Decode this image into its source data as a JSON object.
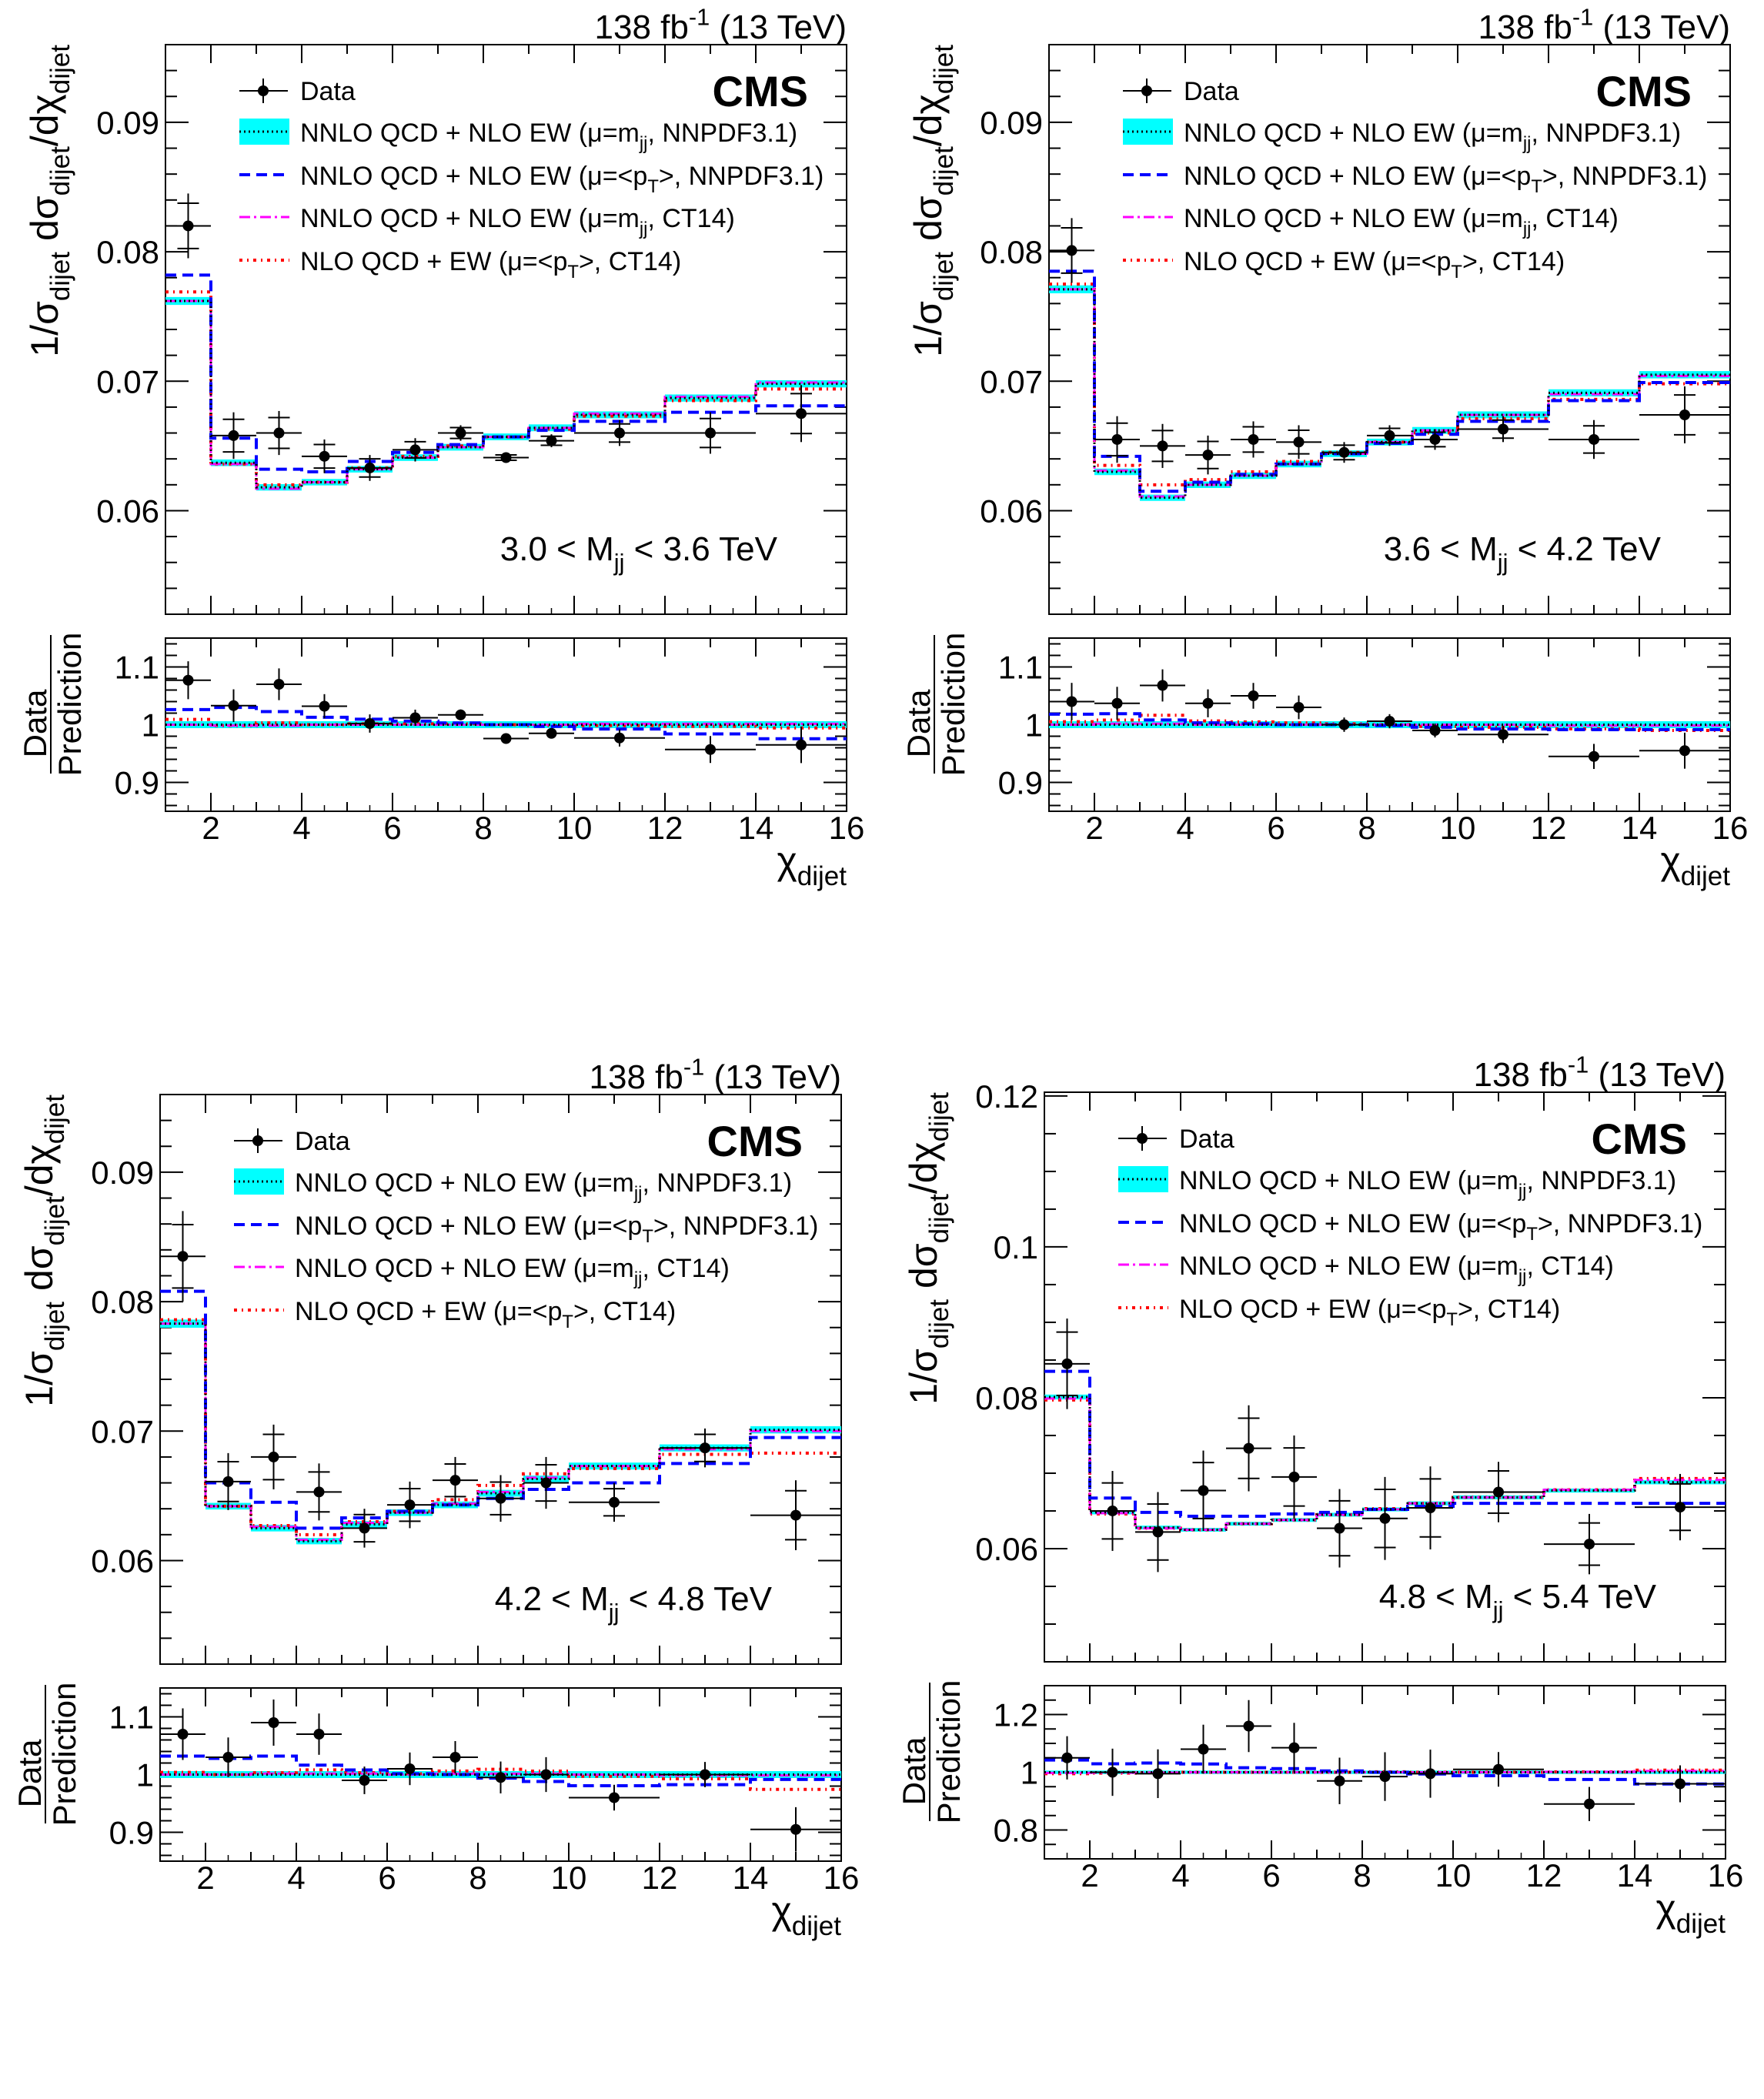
{
  "chart_data": {
    "type": "line",
    "x_bin_edges": [
      1,
      2,
      3,
      4,
      5,
      6,
      7,
      8,
      9,
      10,
      12,
      14,
      16
    ],
    "xlabel": "χ_{dijet}",
    "ylabel_main": "1/σ_{dijet} dσ_{dijet}/dχ_{dijet}",
    "ylabel_ratio_num": "Data",
    "ylabel_ratio_den": "Prediction",
    "lumi": "138 fb^{-1} (13 TeV)",
    "experiment": "CMS",
    "x_ticks": [
      2,
      4,
      6,
      8,
      10,
      12,
      14,
      16
    ],
    "legend": [
      {
        "key": "data",
        "label": "Data"
      },
      {
        "key": "nnpdf_mjj",
        "label": "NNLO QCD + NLO EW (μ=m_{jj}, NNPDF3.1)",
        "color": "#00ffff"
      },
      {
        "key": "nnpdf_pt",
        "label": "NNLO QCD + NLO EW (μ=<p_{T}>, NNPDF3.1)",
        "color": "#0000ff"
      },
      {
        "key": "ct14_mjj",
        "label": "NNLO QCD + NLO EW (μ=m_{jj}, CT14)",
        "color": "#ff00ff"
      },
      {
        "key": "nlo_ct14_pt",
        "label": "NLO QCD + EW (μ=<p_{T}>, CT14)",
        "color": "#ff0000"
      }
    ],
    "panels": [
      {
        "mass_range": "3.0 < M_{jj} < 3.6 TeV",
        "ylim": [
          0.052,
          0.096
        ],
        "y_ticks": [
          0.06,
          0.07,
          0.08,
          0.09
        ],
        "y_minor": 0.002,
        "ratio_ylim": [
          0.85,
          1.15
        ],
        "ratio_ticks": [
          0.9,
          1,
          1.1
        ],
        "ratio_minor": 0.02,
        "data": [
          0.082,
          0.0658,
          0.066,
          0.0642,
          0.0633,
          0.0647,
          0.066,
          0.0641,
          0.0654,
          0.066,
          0.066,
          0.0675
        ],
        "data_err": [
          0.0025,
          0.0018,
          0.0017,
          0.0013,
          0.001,
          0.0009,
          0.0006,
          0.0003,
          0.0005,
          0.001,
          0.0016,
          0.0022
        ],
        "nnpdf_mjj": [
          0.0762,
          0.0637,
          0.0618,
          0.0622,
          0.0632,
          0.0641,
          0.0649,
          0.0657,
          0.0664,
          0.0674,
          0.0687,
          0.0698
        ],
        "nnpdf_pt": [
          0.0782,
          0.0656,
          0.0632,
          0.063,
          0.0638,
          0.0645,
          0.0651,
          0.0657,
          0.0662,
          0.0669,
          0.0676,
          0.0681
        ],
        "ct14_mjj": [
          0.0762,
          0.0636,
          0.0617,
          0.0622,
          0.0632,
          0.0641,
          0.0649,
          0.0657,
          0.0664,
          0.0675,
          0.0688,
          0.0699
        ],
        "nlo_ct14_pt": [
          0.0769,
          0.0636,
          0.062,
          0.0622,
          0.0633,
          0.0642,
          0.065,
          0.0657,
          0.0663,
          0.0673,
          0.0685,
          0.0694
        ],
        "ratio_data": [
          1.077,
          1.033,
          1.07,
          1.032,
          1.002,
          1.012,
          1.017,
          0.976,
          0.985,
          0.977,
          0.957,
          0.965
        ]
      },
      {
        "mass_range": "3.6 < M_{jj} < 4.2 TeV",
        "ylim": [
          0.052,
          0.096
        ],
        "y_ticks": [
          0.06,
          0.07,
          0.08,
          0.09
        ],
        "y_minor": 0.002,
        "ratio_ylim": [
          0.85,
          1.15
        ],
        "ratio_ticks": [
          0.9,
          1,
          1.1
        ],
        "ratio_minor": 0.02,
        "data": [
          0.0801,
          0.0655,
          0.065,
          0.0643,
          0.0655,
          0.0653,
          0.0645,
          0.0658,
          0.0655,
          0.0663,
          0.0655,
          0.0674
        ],
        "data_err": [
          0.0025,
          0.0018,
          0.0017,
          0.0015,
          0.0014,
          0.0013,
          0.0008,
          0.0008,
          0.0008,
          0.001,
          0.0015,
          0.0022
        ],
        "nnpdf_mjj": [
          0.0771,
          0.063,
          0.061,
          0.062,
          0.0627,
          0.0636,
          0.0644,
          0.0653,
          0.0662,
          0.0674,
          0.0691,
          0.0705
        ],
        "nnpdf_pt": [
          0.0785,
          0.0642,
          0.0615,
          0.0622,
          0.0628,
          0.0636,
          0.0644,
          0.0652,
          0.0659,
          0.0669,
          0.0685,
          0.0699
        ],
        "ct14_mjj": [
          0.0771,
          0.0631,
          0.0611,
          0.062,
          0.0627,
          0.0636,
          0.0644,
          0.0653,
          0.0662,
          0.0674,
          0.069,
          0.0704
        ],
        "nlo_ct14_pt": [
          0.0775,
          0.0635,
          0.062,
          0.0624,
          0.063,
          0.0638,
          0.0645,
          0.0653,
          0.066,
          0.0671,
          0.0686,
          0.0698
        ],
        "ratio_data": [
          1.04,
          1.037,
          1.068,
          1.037,
          1.05,
          1.03,
          1.0,
          1.006,
          0.99,
          0.983,
          0.945,
          0.955
        ]
      },
      {
        "mass_range": "4.2 < M_{jj} < 4.8 TeV",
        "ylim": [
          0.052,
          0.096
        ],
        "y_ticks": [
          0.06,
          0.07,
          0.08,
          0.09
        ],
        "y_minor": 0.002,
        "ratio_ylim": [
          0.85,
          1.15
        ],
        "ratio_ticks": [
          0.9,
          1,
          1.1
        ],
        "ratio_minor": 0.02,
        "data": [
          0.0835,
          0.0661,
          0.068,
          0.0653,
          0.0625,
          0.0643,
          0.0662,
          0.0648,
          0.066,
          0.0645,
          0.0687,
          0.0635
        ],
        "data_err": [
          0.0035,
          0.0022,
          0.0025,
          0.0022,
          0.0015,
          0.0018,
          0.0018,
          0.0018,
          0.002,
          0.0015,
          0.0015,
          0.0027
        ],
        "nnpdf_mjj": [
          0.0783,
          0.0642,
          0.0625,
          0.0615,
          0.0628,
          0.0637,
          0.0643,
          0.0652,
          0.0663,
          0.0673,
          0.0687,
          0.0701
        ],
        "nnpdf_pt": [
          0.0808,
          0.066,
          0.0645,
          0.0625,
          0.0633,
          0.0638,
          0.0643,
          0.0648,
          0.0655,
          0.066,
          0.0675,
          0.0695
        ],
        "ct14_mjj": [
          0.0783,
          0.0642,
          0.0626,
          0.0616,
          0.0629,
          0.0637,
          0.0644,
          0.0653,
          0.0664,
          0.0673,
          0.0686,
          0.07
        ],
        "nlo_ct14_pt": [
          0.0786,
          0.0642,
          0.0627,
          0.062,
          0.063,
          0.0638,
          0.0647,
          0.0658,
          0.0667,
          0.0671,
          0.0682,
          0.0683
        ],
        "ratio_data": [
          1.07,
          1.03,
          1.09,
          1.07,
          0.99,
          1.01,
          1.03,
          0.995,
          1.0,
          0.96,
          1.0,
          0.905
        ]
      },
      {
        "mass_range": "4.8 < M_{jj} < 5.4 TeV",
        "ylim": [
          0.045,
          0.1205
        ],
        "y_ticks": [
          0.06,
          0.08,
          0.1,
          0.12
        ],
        "y_minor": 0.005,
        "ratio_ylim": [
          0.7,
          1.3
        ],
        "ratio_ticks": [
          0.8,
          1,
          1.2
        ],
        "ratio_minor": 0.05,
        "data": [
          0.0845,
          0.065,
          0.0622,
          0.0677,
          0.0733,
          0.0695,
          0.0627,
          0.064,
          0.0654,
          0.0675,
          0.0606,
          0.0655
        ],
        "data_err": [
          0.006,
          0.0053,
          0.0053,
          0.0053,
          0.0057,
          0.0055,
          0.0052,
          0.0055,
          0.0055,
          0.004,
          0.004,
          0.0044
        ],
        "nnpdf_mjj": [
          0.0801,
          0.0648,
          0.0628,
          0.0625,
          0.0633,
          0.0638,
          0.0645,
          0.0652,
          0.066,
          0.0668,
          0.0677,
          0.0688
        ],
        "nnpdf_pt": [
          0.0835,
          0.0667,
          0.0648,
          0.0643,
          0.0643,
          0.0646,
          0.0648,
          0.0652,
          0.0656,
          0.066,
          0.066,
          0.066
        ],
        "ct14_mjj": [
          0.0799,
          0.0647,
          0.0627,
          0.0625,
          0.0633,
          0.0638,
          0.0645,
          0.0652,
          0.066,
          0.0668,
          0.0678,
          0.0691
        ],
        "nlo_ct14_pt": [
          0.0797,
          0.0646,
          0.0627,
          0.0625,
          0.0633,
          0.0638,
          0.0645,
          0.0653,
          0.066,
          0.0668,
          0.0678,
          0.0693
        ],
        "ratio_data": [
          1.05,
          1.0,
          0.995,
          1.08,
          1.16,
          1.085,
          0.97,
          0.985,
          0.995,
          1.01,
          0.89,
          0.96
        ]
      }
    ]
  }
}
